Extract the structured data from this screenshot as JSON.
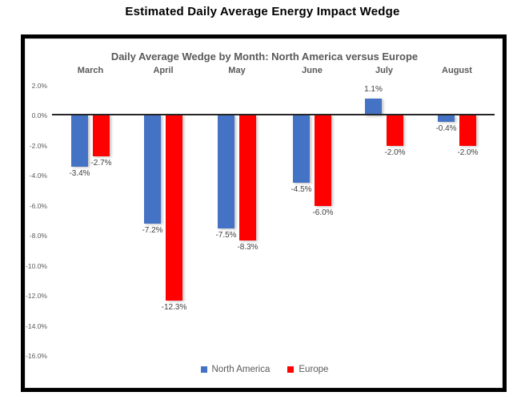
{
  "page_title": "Estimated Daily Average Energy Impact Wedge",
  "chart_data": {
    "type": "bar",
    "title": "Daily Average Wedge by Month: North America versus Europe",
    "categories": [
      "March",
      "April",
      "May",
      "June",
      "July",
      "August"
    ],
    "series": [
      {
        "name": "North America",
        "color": "#4472C4",
        "values": [
          -3.4,
          -7.2,
          -7.5,
          -4.5,
          1.1,
          -0.4
        ],
        "labels": [
          "-3.4%",
          "-7.2%",
          "-7.5%",
          "-4.5%",
          "1.1%",
          "-0.4%"
        ]
      },
      {
        "name": "Europe",
        "color": "#FF0000",
        "values": [
          -2.7,
          -12.3,
          -8.3,
          -6.0,
          -2.0,
          -2.0
        ],
        "labels": [
          "-2.7%",
          "-12.3%",
          "-8.3%",
          "-6.0%",
          "-2.0%",
          "-2.0%"
        ]
      }
    ],
    "ylabel": "",
    "xlabel": "",
    "ylim": [
      -16,
      2
    ],
    "y_ticks": [
      "2.0%",
      "0.0%",
      "-2.0%",
      "-4.0%",
      "-6.0%",
      "-8.0%",
      "-10.0%",
      "-12.0%",
      "-14.0%",
      "-16.0%"
    ],
    "y_tick_values": [
      2,
      0,
      -2,
      -4,
      -6,
      -8,
      -10,
      -12,
      -14,
      -16
    ],
    "grid": false,
    "legend_position": "bottom",
    "legend": {
      "items": [
        {
          "label": "North America",
          "color": "#4472C4"
        },
        {
          "label": "Europe",
          "color": "#FF0000"
        }
      ]
    },
    "colors": {
      "axis_line": "#262626",
      "data_label": "#404040",
      "axis_text": "#595959",
      "title_text": "#595959",
      "frame_border": "#000000"
    }
  }
}
